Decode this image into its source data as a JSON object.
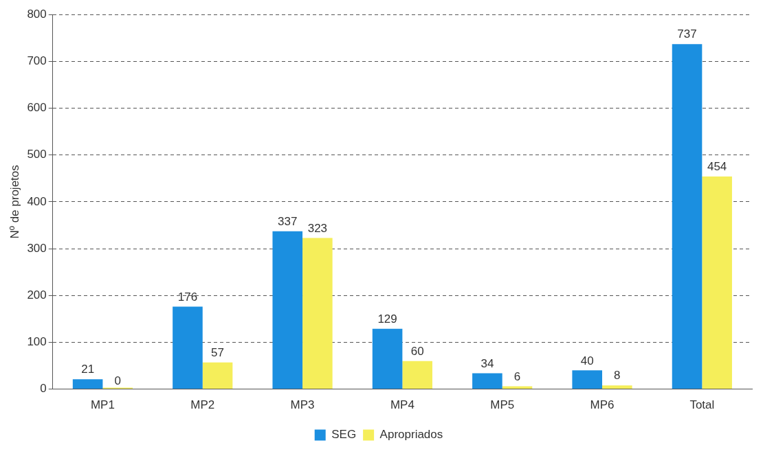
{
  "chart_data": {
    "type": "bar",
    "ylabel": "Nº de projetos",
    "categories": [
      "MP1",
      "MP2",
      "MP3",
      "MP4",
      "MP5",
      "MP6",
      "Total"
    ],
    "series": [
      {
        "name": "SEG",
        "color": "#1b8fe0",
        "values": [
          21,
          176,
          337,
          129,
          34,
          40,
          737
        ]
      },
      {
        "name": "Apropriados",
        "color": "#f5ee5a",
        "values": [
          0,
          57,
          323,
          60,
          6,
          8,
          454
        ]
      }
    ],
    "ylim": [
      0,
      800
    ],
    "yticks": [
      0,
      100,
      200,
      300,
      400,
      500,
      600,
      700,
      800
    ],
    "grid": "y",
    "legend": "bottom",
    "data_labels": true
  }
}
